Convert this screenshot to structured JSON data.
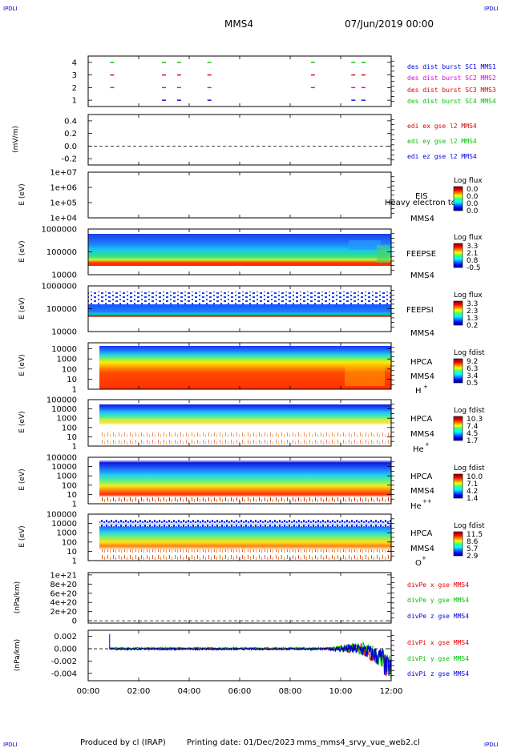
{
  "header": {
    "corner": "IPDLI",
    "spacecraft": "MMS4",
    "date": "07/Jun/2019 00:00"
  },
  "footer": {
    "produced": "Produced by cl (IRAP)",
    "printed": "Printing date: 01/Dec/2023",
    "script": "mms_mms4_srvy_vue_web2.cl"
  },
  "colors": {
    "red": "#e00000",
    "green": "#00c000",
    "blue": "#0000e0",
    "magenta": "#e000e0"
  },
  "chart_data": [
    {
      "id": "burst",
      "type": "scatter",
      "ylim": [
        0.5,
        4.5
      ],
      "yticks": [
        "1",
        "2",
        "3",
        "4"
      ],
      "series": [
        {
          "name": "des dist burst SC1 MMS1",
          "y": 1,
          "color": "#0000e0",
          "x_hours": [
            3.0,
            3.6,
            4.8,
            10.5,
            10.9
          ]
        },
        {
          "name": "des dist burst SC2 MMS2",
          "y": 2,
          "color": "#e000e0",
          "x_hours": [
            0.95,
            3.0,
            3.6,
            4.8,
            8.9,
            10.5,
            10.9
          ]
        },
        {
          "name": "des dist burst SC3 MMS3",
          "y": 3,
          "color": "#e00000",
          "x_hours": [
            0.95,
            3.0,
            3.6,
            4.8,
            8.9,
            10.5,
            10.9
          ]
        },
        {
          "name": "des dist burst SC4 MMS4",
          "y": 4,
          "color": "#00c000",
          "x_hours": [
            0.95,
            3.0,
            3.6,
            4.8,
            8.9,
            10.5,
            10.9
          ]
        }
      ]
    },
    {
      "id": "edi",
      "type": "line",
      "ylabel": "(mV/m)",
      "ylim": [
        -0.3,
        0.5
      ],
      "yticks": [
        "0.4",
        "0.2",
        "0.0",
        "-0.2"
      ],
      "ytick_values": [
        0.4,
        0.2,
        0.0,
        -0.2
      ],
      "series": [
        {
          "name": "edi ex gse l2 MMS4",
          "color": "#e00000"
        },
        {
          "name": "edi ey gse l2 MMS4",
          "color": "#00c000"
        },
        {
          "name": "edi ez gse l2 MMS4",
          "color": "#0000e0"
        }
      ],
      "zero_line": true
    },
    {
      "id": "eis",
      "type": "heatmap",
      "ylabel": "E (eV)",
      "yscale": "log",
      "ylim": [
        10000,
        10000000
      ],
      "yticks": [
        "1e+07",
        "1e+06",
        "1e+05",
        "1e+04"
      ],
      "instrument": "EIS",
      "overlap_label": "Heavy electron to",
      "spacecraft": "MMS4",
      "colorbar": {
        "title": "Log flux",
        "ticks": [
          "0.0",
          "0.0",
          "0.0",
          "0.0"
        ]
      }
    },
    {
      "id": "feepse",
      "type": "heatmap",
      "ylabel": "E (eV)",
      "yscale": "log",
      "ylim": [
        10000,
        1000000
      ],
      "yticks": [
        "1000000",
        "100000",
        "10000"
      ],
      "instrument": "FEEPSE",
      "spacecraft": "MMS4",
      "colorbar": {
        "title": "Log flux",
        "ticks": [
          "3.3",
          "2.1",
          "0.8",
          "-0.5"
        ]
      }
    },
    {
      "id": "feepsi",
      "type": "heatmap",
      "ylabel": "E (eV)",
      "yscale": "log",
      "ylim": [
        10000,
        1000000
      ],
      "yticks": [
        "1000000",
        "100000",
        "10000"
      ],
      "instrument": "FEEPSI",
      "spacecraft": "MMS4",
      "colorbar": {
        "title": "Log flux",
        "ticks": [
          "3.3",
          "2.3",
          "1.3",
          "0.2"
        ]
      }
    },
    {
      "id": "hpca_h",
      "type": "heatmap",
      "ylabel": "E (eV)",
      "yscale": "log",
      "ylim": [
        1,
        40000
      ],
      "yticks": [
        "10000",
        "1000",
        "100",
        "10",
        "1"
      ],
      "instrument": "HPCA",
      "spacecraft": "MMS4",
      "species": "H",
      "charge": "+",
      "colorbar": {
        "title": "Log fdist",
        "ticks": [
          "9.2",
          "6.3",
          "3.4",
          "0.5"
        ]
      }
    },
    {
      "id": "hpca_he",
      "type": "heatmap",
      "ylabel": "E (eV)",
      "yscale": "log",
      "ylim": [
        1,
        100000
      ],
      "yticks": [
        "100000",
        "10000",
        "1000",
        "100",
        "10",
        "1"
      ],
      "instrument": "HPCA",
      "spacecraft": "MMS4",
      "species": "He",
      "charge": "+",
      "colorbar": {
        "title": "Log fdist",
        "ticks": [
          "10.3",
          "7.4",
          "4.5",
          "1.7"
        ]
      }
    },
    {
      "id": "hpca_hepp",
      "type": "heatmap",
      "ylabel": "E (eV)",
      "yscale": "log",
      "ylim": [
        1,
        100000
      ],
      "yticks": [
        "100000",
        "10000",
        "1000",
        "100",
        "10",
        "1"
      ],
      "instrument": "HPCA",
      "spacecraft": "MMS4",
      "species": "He",
      "charge": "++",
      "colorbar": {
        "title": "Log fdist",
        "ticks": [
          "10.0",
          "7.1",
          "4.2",
          "1.4"
        ]
      }
    },
    {
      "id": "hpca_o",
      "type": "heatmap",
      "ylabel": "E (eV)",
      "yscale": "log",
      "ylim": [
        1,
        100000
      ],
      "yticks": [
        "100000",
        "10000",
        "1000",
        "100",
        "10",
        "1"
      ],
      "instrument": "HPCA",
      "spacecraft": "MMS4",
      "species": "O",
      "charge": "+",
      "colorbar": {
        "title": "Log fdist",
        "ticks": [
          "11.5",
          "8.6",
          "5.7",
          "2.9"
        ]
      }
    },
    {
      "id": "divpe",
      "type": "line",
      "ylabel": "(nPa/km)",
      "ylim": [
        -5e+19,
        1.05e+21
      ],
      "yticks": [
        "1e+21",
        "8e+20",
        "6e+20",
        "4e+20",
        "2e+20",
        "0"
      ],
      "ytick_values": [
        1e+21,
        8e+20,
        6e+20,
        4e+20,
        2e+20,
        0
      ],
      "series": [
        {
          "name": "divPe x gse MMS4",
          "color": "#e00000"
        },
        {
          "name": "divPe y gse MMS4",
          "color": "#00c000"
        },
        {
          "name": "divPe z gse MMS4",
          "color": "#0000e0"
        }
      ],
      "zero_line": true
    },
    {
      "id": "divpi",
      "type": "line",
      "ylabel": "(nPa/km)",
      "ylim": [
        -0.0052,
        0.003
      ],
      "yticks": [
        "0.002",
        "0.000",
        "-0.002",
        "-0.004"
      ],
      "ytick_values": [
        0.002,
        0.0,
        -0.002,
        -0.004
      ],
      "series": [
        {
          "name": "divPi x gse MMS4",
          "color": "#e00000",
          "start_hours": 0.85,
          "offset": 0.0
        },
        {
          "name": "divPi y gse MMS4",
          "color": "#00c000",
          "start_hours": 0.85,
          "offset": 0.0001
        },
        {
          "name": "divPi z gse MMS4",
          "color": "#0000e0",
          "start_hours": 0.85,
          "offset": -5e-05
        }
      ],
      "zero_line": true
    }
  ],
  "xaxis": {
    "range_hours": [
      0,
      12
    ],
    "ticks": [
      "00:00",
      "02:00",
      "04:00",
      "06:00",
      "08:00",
      "10:00",
      "12:00"
    ],
    "tick_hours": [
      0,
      2,
      4,
      6,
      8,
      10,
      12
    ]
  }
}
